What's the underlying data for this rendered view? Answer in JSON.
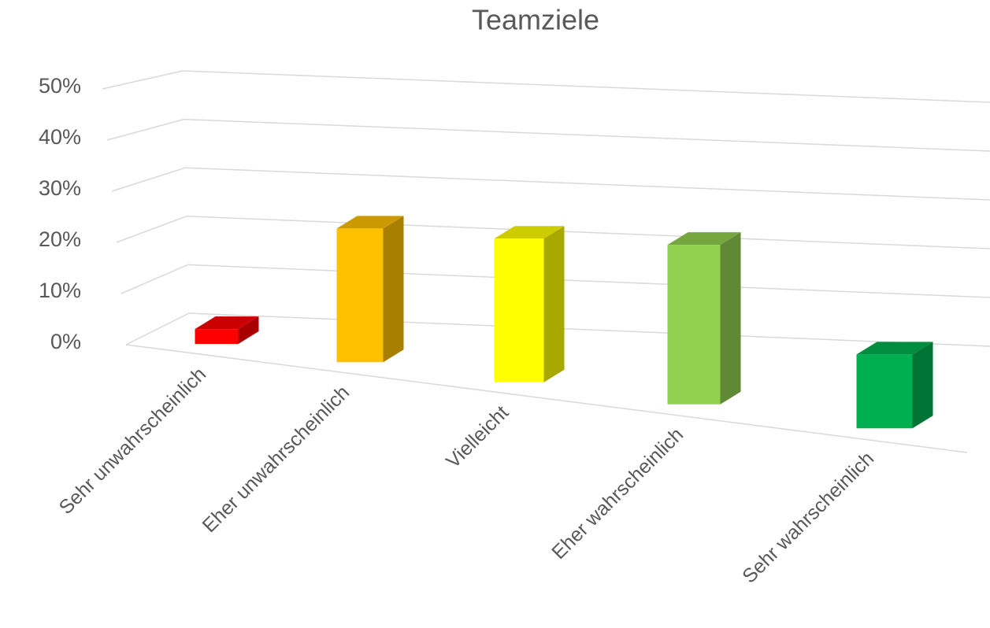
{
  "chart_data": {
    "type": "bar3d",
    "title": "Teamziele",
    "categories": [
      "Sehr unwahrscheinlich",
      "Eher unwahrscheinlich",
      "Vielleicht",
      "Eher wahrscheinlich",
      "Sehr wahrscheinlich"
    ],
    "values": [
      3,
      26,
      27,
      29,
      13
    ],
    "colors": [
      "#ff0000",
      "#ffc000",
      "#ffff00",
      "#92d050",
      "#00b050"
    ],
    "ylim": [
      0,
      50
    ],
    "yticks": [
      {
        "value": 0,
        "label": "0%"
      },
      {
        "value": 10,
        "label": "10%"
      },
      {
        "value": 20,
        "label": "20%"
      },
      {
        "value": 30,
        "label": "30%"
      },
      {
        "value": 40,
        "label": "40%"
      },
      {
        "value": 50,
        "label": "50%"
      }
    ],
    "grid": true
  }
}
